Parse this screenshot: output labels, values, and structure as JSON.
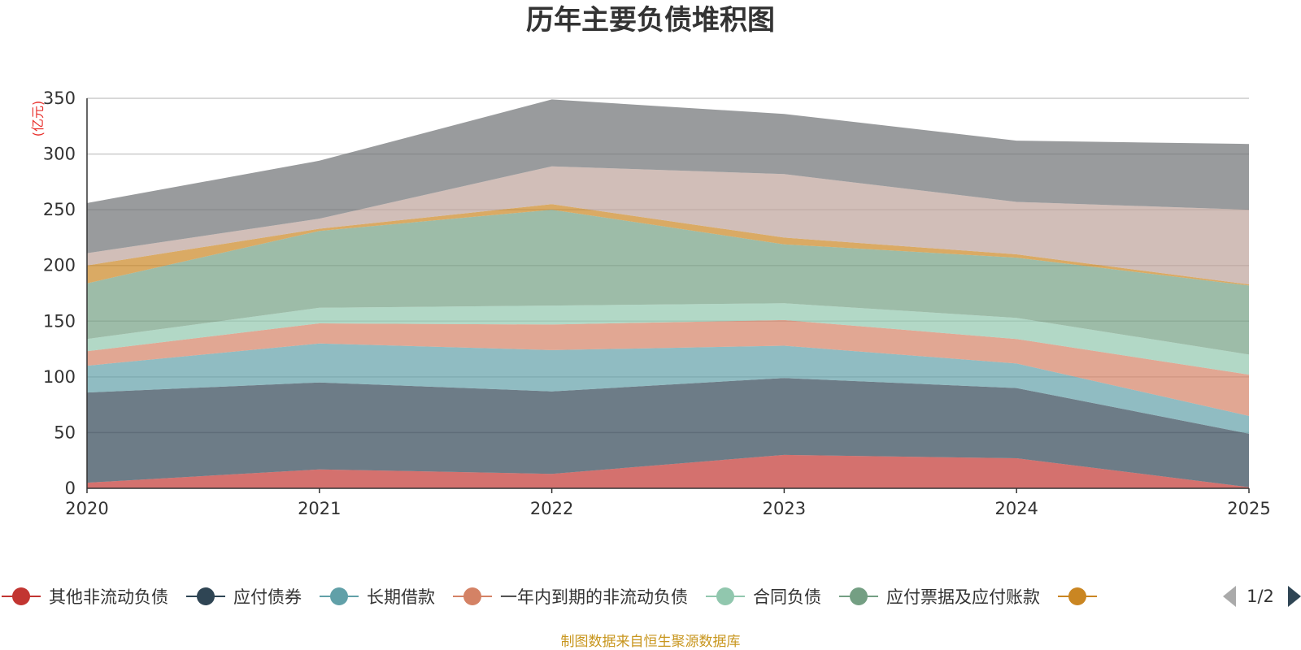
{
  "chart_data": {
    "type": "area",
    "stacked": true,
    "title": "历年主要负债堆积图",
    "unit_label": "(亿元)",
    "x": [
      "2020",
      "2021",
      "2022",
      "2023",
      "2024",
      "2025"
    ],
    "ylim": [
      0,
      350
    ],
    "yticks": [
      0,
      50,
      100,
      150,
      200,
      250,
      300,
      350
    ],
    "grid": true,
    "series": [
      {
        "name": "其他非流动负债",
        "color": "#c23531",
        "values": [
          5,
          17,
          13,
          30,
          27,
          1
        ]
      },
      {
        "name": "应付债券",
        "color": "#2f4554",
        "values": [
          81,
          78,
          74,
          69,
          63,
          48
        ]
      },
      {
        "name": "长期借款",
        "color": "#61a0a8",
        "values": [
          24,
          35,
          37,
          29,
          22,
          16
        ]
      },
      {
        "name": "一年内到期的非流动负债",
        "color": "#d48265",
        "values": [
          13,
          18,
          23,
          23,
          22,
          37
        ]
      },
      {
        "name": "合同负债",
        "color": "#91c7ae",
        "values": [
          11,
          14,
          17,
          15,
          19,
          18
        ]
      },
      {
        "name": "应付票据及应付账款",
        "color": "#749f83",
        "values": [
          50,
          69,
          86,
          53,
          54,
          62
        ]
      },
      {
        "name": "",
        "color": "#ca8622",
        "values": [
          16,
          2,
          5,
          6,
          3,
          1
        ]
      },
      {
        "name": "",
        "color": "#bda29a",
        "values": [
          11,
          9,
          34,
          57,
          47,
          67
        ]
      },
      {
        "name": "",
        "color": "#6e7074",
        "values": [
          45,
          52,
          60,
          54,
          55,
          59
        ]
      }
    ],
    "legend_position": "bottom",
    "legend_page": "1/2"
  },
  "source_note": "制图数据来自恒生聚源数据库"
}
